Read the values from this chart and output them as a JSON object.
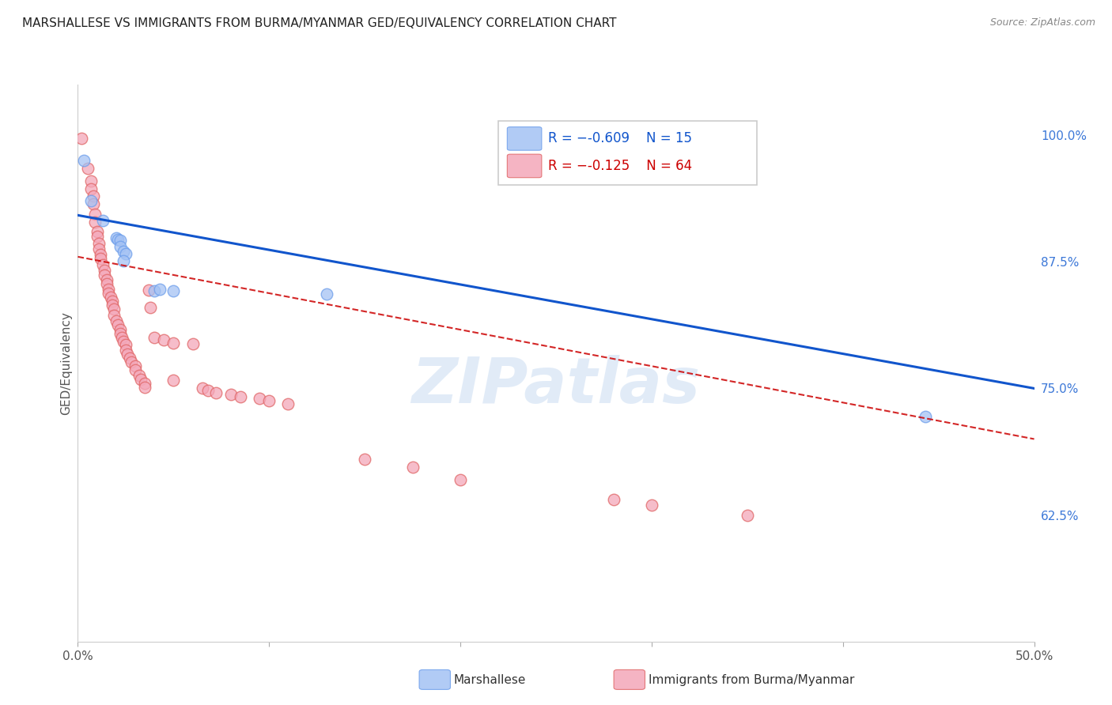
{
  "title": "MARSHALLESE VS IMMIGRANTS FROM BURMA/MYANMAR GED/EQUIVALENCY CORRELATION CHART",
  "source": "Source: ZipAtlas.com",
  "ylabel": "GED/Equivalency",
  "ytick_labels": [
    "62.5%",
    "75.0%",
    "87.5%",
    "100.0%"
  ],
  "ytick_values": [
    0.625,
    0.75,
    0.875,
    1.0
  ],
  "xlim": [
    0.0,
    0.5
  ],
  "ylim": [
    0.5,
    1.05
  ],
  "legend_blue_r": "-0.609",
  "legend_blue_n": "15",
  "legend_pink_r": "-0.125",
  "legend_pink_n": "64",
  "blue_color": "#a4c2f4",
  "pink_color": "#f4a7b9",
  "blue_scatter_color": "#6d9eeb",
  "pink_scatter_color": "#e06666",
  "blue_line_color": "#1155cc",
  "pink_line_color": "#cc0000",
  "blue_scatter": [
    [
      0.003,
      0.975
    ],
    [
      0.007,
      0.935
    ],
    [
      0.013,
      0.916
    ],
    [
      0.02,
      0.899
    ],
    [
      0.021,
      0.897
    ],
    [
      0.022,
      0.896
    ],
    [
      0.022,
      0.89
    ],
    [
      0.024,
      0.885
    ],
    [
      0.025,
      0.883
    ],
    [
      0.024,
      0.876
    ],
    [
      0.04,
      0.846
    ],
    [
      0.043,
      0.848
    ],
    [
      0.05,
      0.846
    ],
    [
      0.13,
      0.843
    ],
    [
      0.443,
      0.722
    ]
  ],
  "pink_scatter": [
    [
      0.002,
      0.997
    ],
    [
      0.005,
      0.967
    ],
    [
      0.007,
      0.955
    ],
    [
      0.007,
      0.947
    ],
    [
      0.008,
      0.94
    ],
    [
      0.008,
      0.932
    ],
    [
      0.009,
      0.922
    ],
    [
      0.009,
      0.914
    ],
    [
      0.01,
      0.905
    ],
    [
      0.01,
      0.9
    ],
    [
      0.011,
      0.893
    ],
    [
      0.011,
      0.888
    ],
    [
      0.012,
      0.882
    ],
    [
      0.012,
      0.878
    ],
    [
      0.013,
      0.872
    ],
    [
      0.014,
      0.867
    ],
    [
      0.014,
      0.862
    ],
    [
      0.015,
      0.857
    ],
    [
      0.015,
      0.853
    ],
    [
      0.016,
      0.848
    ],
    [
      0.016,
      0.844
    ],
    [
      0.017,
      0.84
    ],
    [
      0.018,
      0.836
    ],
    [
      0.018,
      0.832
    ],
    [
      0.019,
      0.828
    ],
    [
      0.019,
      0.822
    ],
    [
      0.02,
      0.817
    ],
    [
      0.021,
      0.813
    ],
    [
      0.022,
      0.808
    ],
    [
      0.022,
      0.804
    ],
    [
      0.023,
      0.8
    ],
    [
      0.024,
      0.796
    ],
    [
      0.025,
      0.793
    ],
    [
      0.025,
      0.788
    ],
    [
      0.026,
      0.784
    ],
    [
      0.027,
      0.78
    ],
    [
      0.028,
      0.776
    ],
    [
      0.03,
      0.772
    ],
    [
      0.03,
      0.768
    ],
    [
      0.032,
      0.763
    ],
    [
      0.033,
      0.759
    ],
    [
      0.035,
      0.755
    ],
    [
      0.035,
      0.751
    ],
    [
      0.037,
      0.847
    ],
    [
      0.038,
      0.83
    ],
    [
      0.04,
      0.8
    ],
    [
      0.045,
      0.798
    ],
    [
      0.05,
      0.795
    ],
    [
      0.05,
      0.758
    ],
    [
      0.06,
      0.794
    ],
    [
      0.065,
      0.75
    ],
    [
      0.068,
      0.748
    ],
    [
      0.072,
      0.746
    ],
    [
      0.08,
      0.744
    ],
    [
      0.085,
      0.742
    ],
    [
      0.095,
      0.74
    ],
    [
      0.1,
      0.738
    ],
    [
      0.11,
      0.735
    ],
    [
      0.15,
      0.68
    ],
    [
      0.175,
      0.672
    ],
    [
      0.2,
      0.66
    ],
    [
      0.28,
      0.64
    ],
    [
      0.3,
      0.635
    ],
    [
      0.35,
      0.625
    ]
  ],
  "blue_trend": [
    0.0,
    0.5,
    0.921,
    0.75
  ],
  "pink_trend": [
    0.0,
    0.5,
    0.88,
    0.7
  ],
  "watermark": "ZIPatlas",
  "background_color": "#ffffff",
  "grid_color": "#dddddd"
}
